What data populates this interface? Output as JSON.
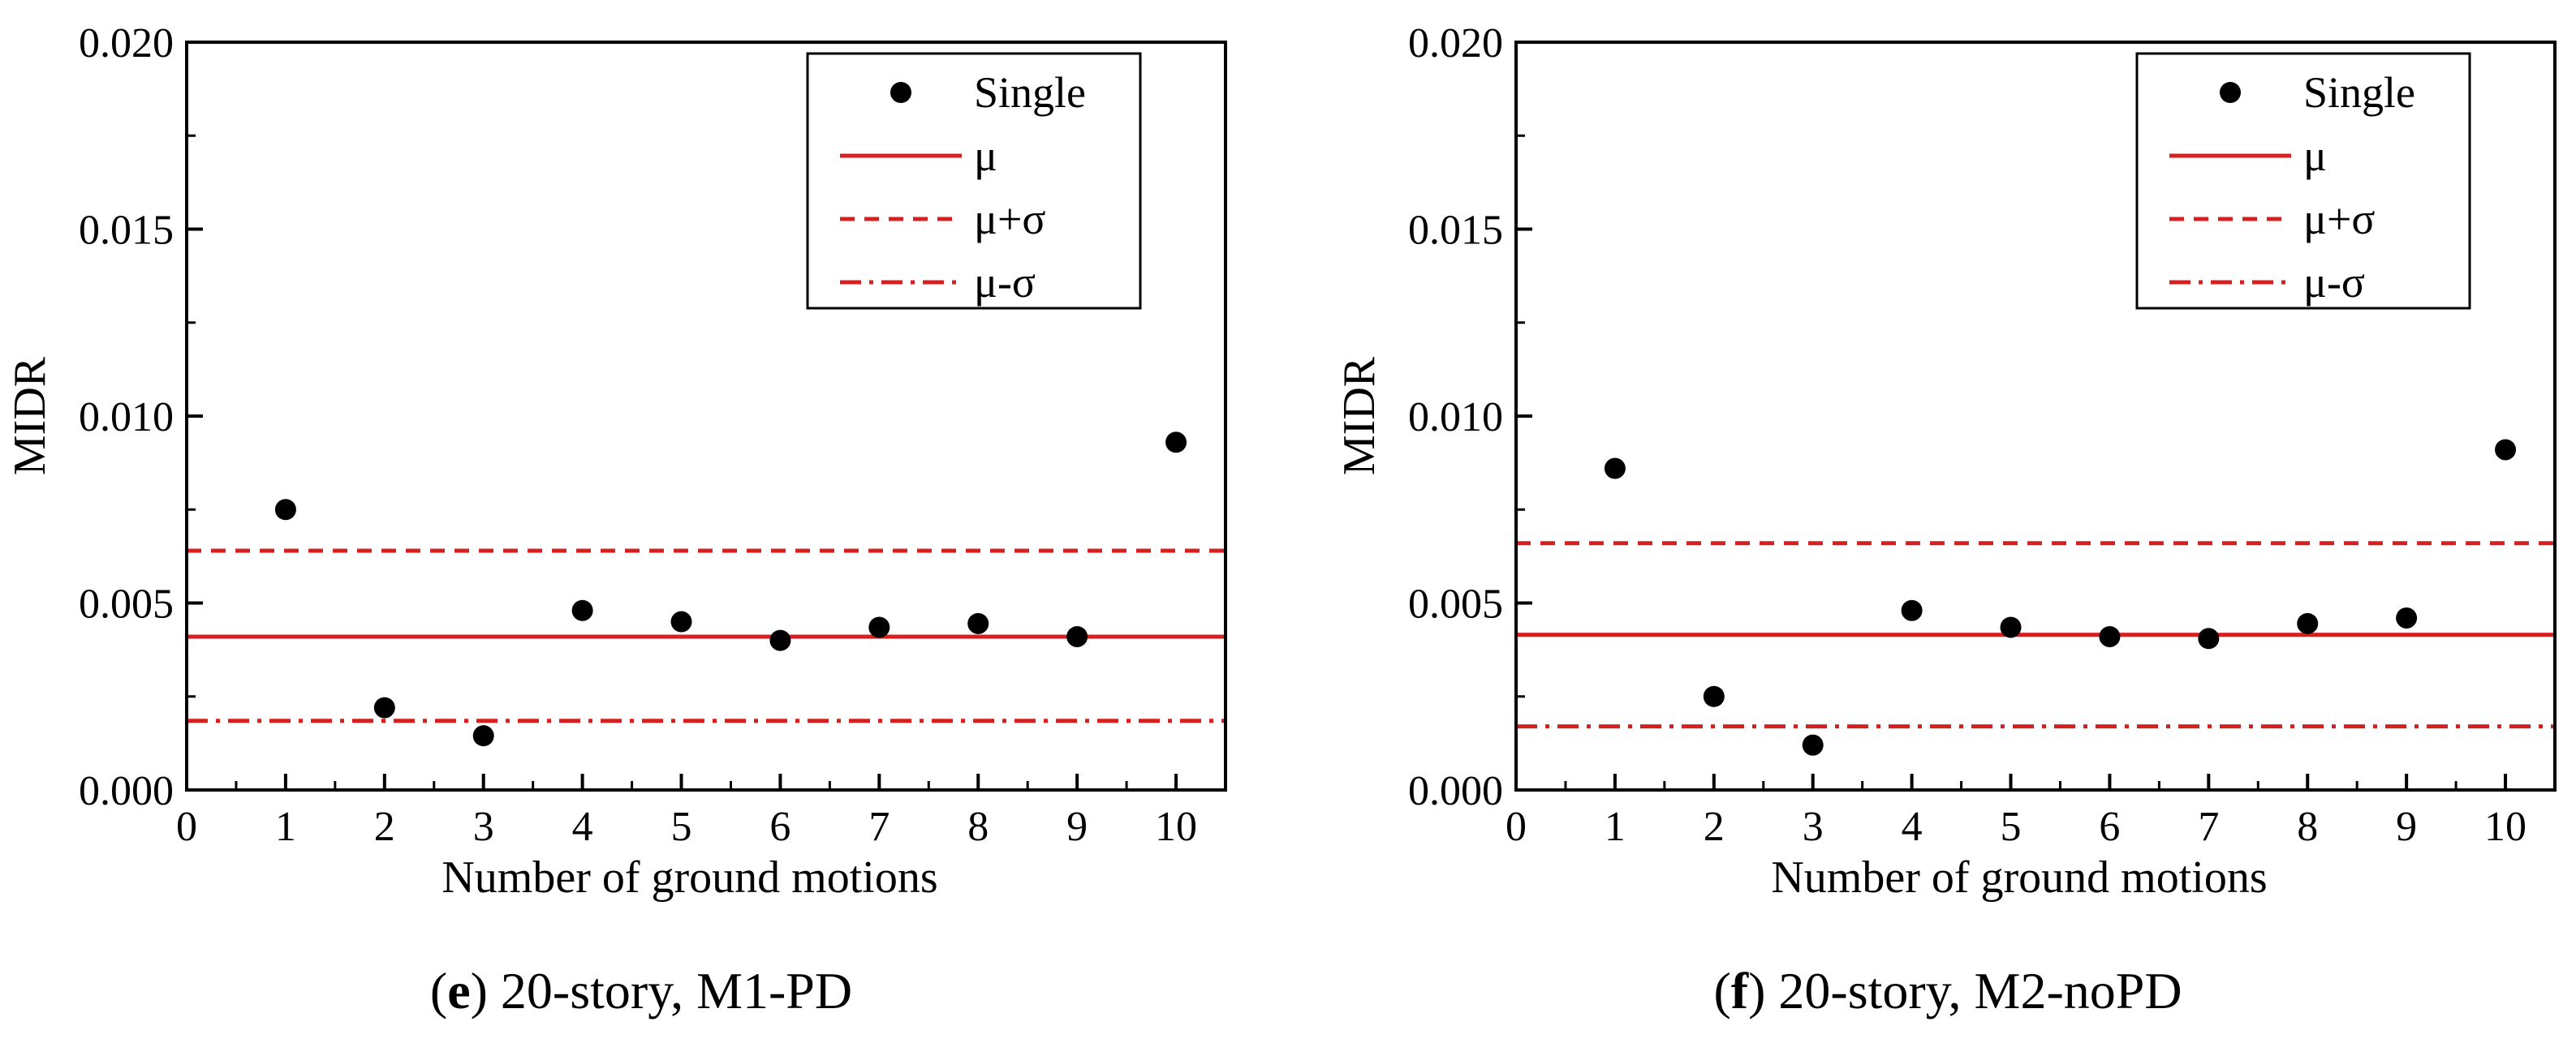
{
  "chart_data": [
    {
      "type": "scatter",
      "panel": "e",
      "caption": "20-story, M1-PD",
      "title": "",
      "xlabel": "Number of ground motions",
      "ylabel": "MIDR",
      "xlim": [
        0,
        10.5
      ],
      "ylim": [
        0,
        0.02
      ],
      "xticks": [
        "0",
        "1",
        "2",
        "3",
        "4",
        "5",
        "6",
        "7",
        "8",
        "9",
        "10"
      ],
      "yticks": [
        "0.000",
        "0.005",
        "0.010",
        "0.015",
        "0.020"
      ],
      "legend_position": "top-right",
      "series": [
        {
          "name": "Single",
          "kind": "points",
          "x": [
            1,
            2,
            3,
            4,
            5,
            6,
            7,
            8,
            9,
            10
          ],
          "y": [
            0.0075,
            0.0022,
            0.00145,
            0.0048,
            0.0045,
            0.004,
            0.00435,
            0.00445,
            0.0041,
            0.0093
          ]
        },
        {
          "name": "μ",
          "kind": "hline",
          "style": "solid",
          "value": 0.0041
        },
        {
          "name": "μ+σ",
          "kind": "hline",
          "style": "dash",
          "value": 0.0064
        },
        {
          "name": "μ-σ",
          "kind": "hline",
          "style": "dashdot",
          "value": 0.00185
        }
      ]
    },
    {
      "type": "scatter",
      "panel": "f",
      "caption": "20-story, M2-noPD",
      "title": "",
      "xlabel": "Number of ground motions",
      "ylabel": "MIDR",
      "xlim": [
        0,
        10.5
      ],
      "ylim": [
        0,
        0.02
      ],
      "xticks": [
        "0",
        "1",
        "2",
        "3",
        "4",
        "5",
        "6",
        "7",
        "8",
        "9",
        "10"
      ],
      "yticks": [
        "0.000",
        "0.005",
        "0.010",
        "0.015",
        "0.020"
      ],
      "legend_position": "top-right",
      "series": [
        {
          "name": "Single",
          "kind": "points",
          "x": [
            1,
            2,
            3,
            4,
            5,
            6,
            7,
            8,
            9,
            10
          ],
          "y": [
            0.0086,
            0.0025,
            0.0012,
            0.0048,
            0.00435,
            0.0041,
            0.00405,
            0.00445,
            0.0046,
            0.0091
          ]
        },
        {
          "name": "μ",
          "kind": "hline",
          "style": "solid",
          "value": 0.00415
        },
        {
          "name": "μ+σ",
          "kind": "hline",
          "style": "dash",
          "value": 0.0066
        },
        {
          "name": "μ-σ",
          "kind": "hline",
          "style": "dashdot",
          "value": 0.0017
        }
      ]
    }
  ],
  "colors": {
    "points": "#000000",
    "lines": "#d62020",
    "axis": "#000000"
  }
}
